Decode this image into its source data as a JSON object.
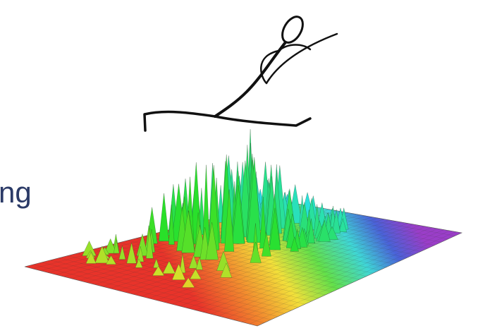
{
  "text": "ng"
}
